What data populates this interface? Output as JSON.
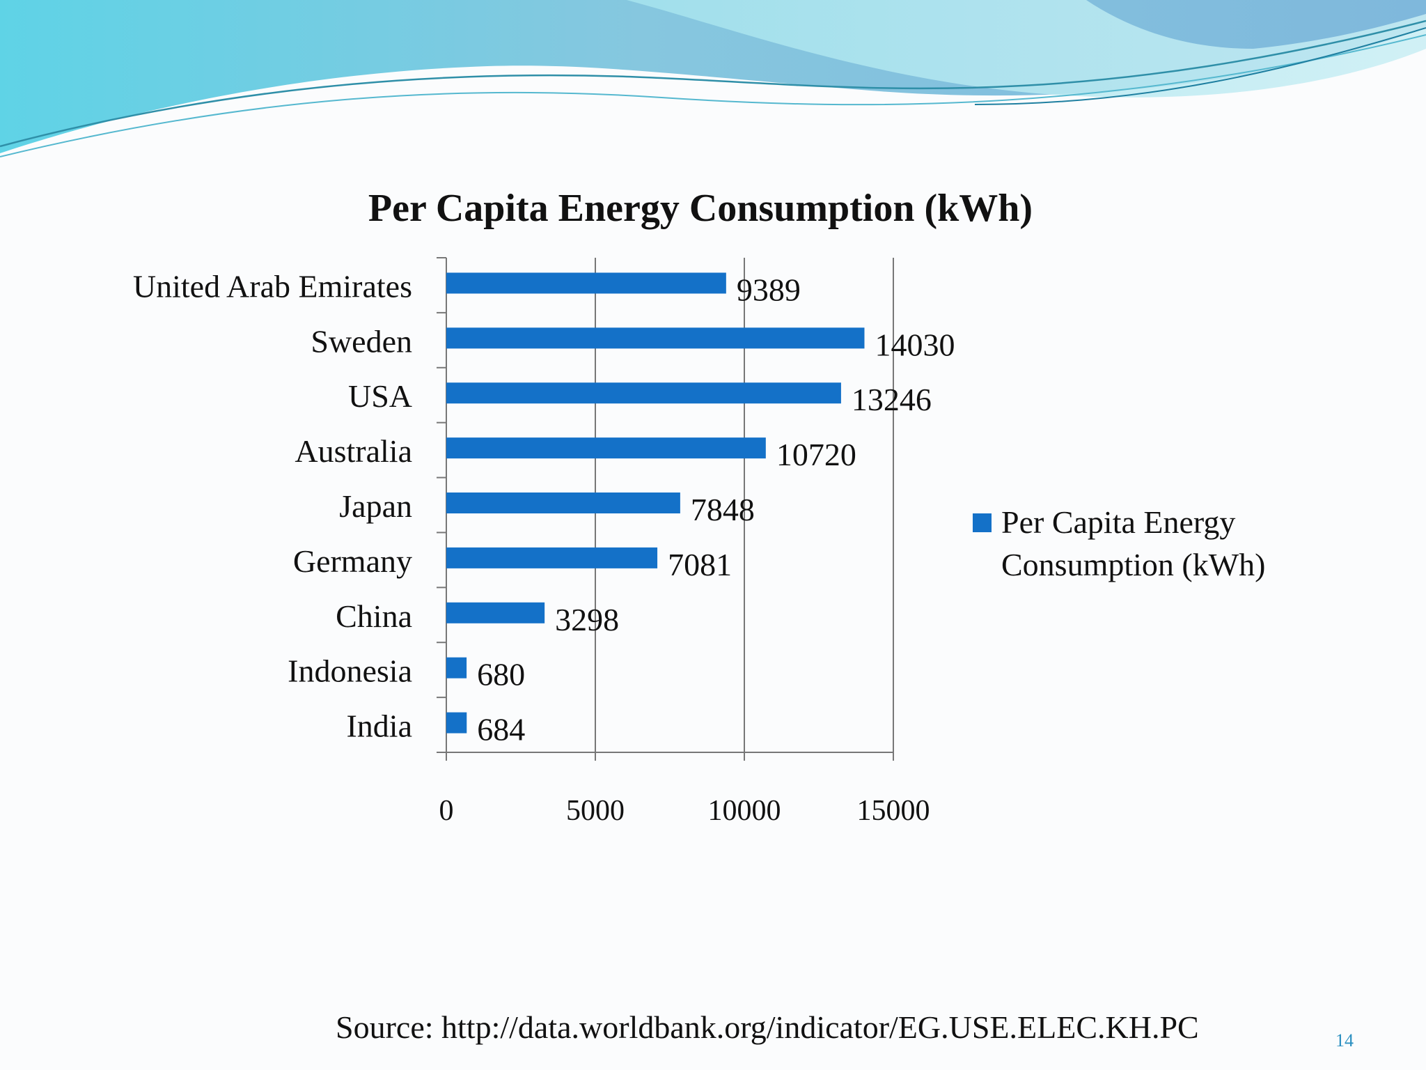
{
  "chart_data": {
    "type": "bar",
    "orientation": "horizontal",
    "title": "Per Capita Energy Consumption (kWh)",
    "categories": [
      "United Arab Emirates",
      "Sweden",
      "USA",
      "Australia",
      "Japan",
      "Germany",
      "China",
      "Indonesia",
      "India"
    ],
    "series": [
      {
        "name": "Per Capita Energy Consumption (kWh)",
        "values": [
          9389,
          14030,
          13246,
          10720,
          7848,
          7081,
          3298,
          680,
          684
        ],
        "color": "#1471c8"
      }
    ],
    "xlim": [
      0,
      15000
    ],
    "xticks": [
      "0",
      "5000",
      "10000",
      "15000"
    ],
    "legend": {
      "position": "right",
      "lines": [
        "Per Capita Energy",
        "Consumption (kWh)"
      ]
    },
    "grid": "vertical"
  },
  "footer": {
    "source": "Source: http://data.worldbank.org/indicator/EG.USE.ELEC.KH.PC",
    "page_number": "14"
  }
}
